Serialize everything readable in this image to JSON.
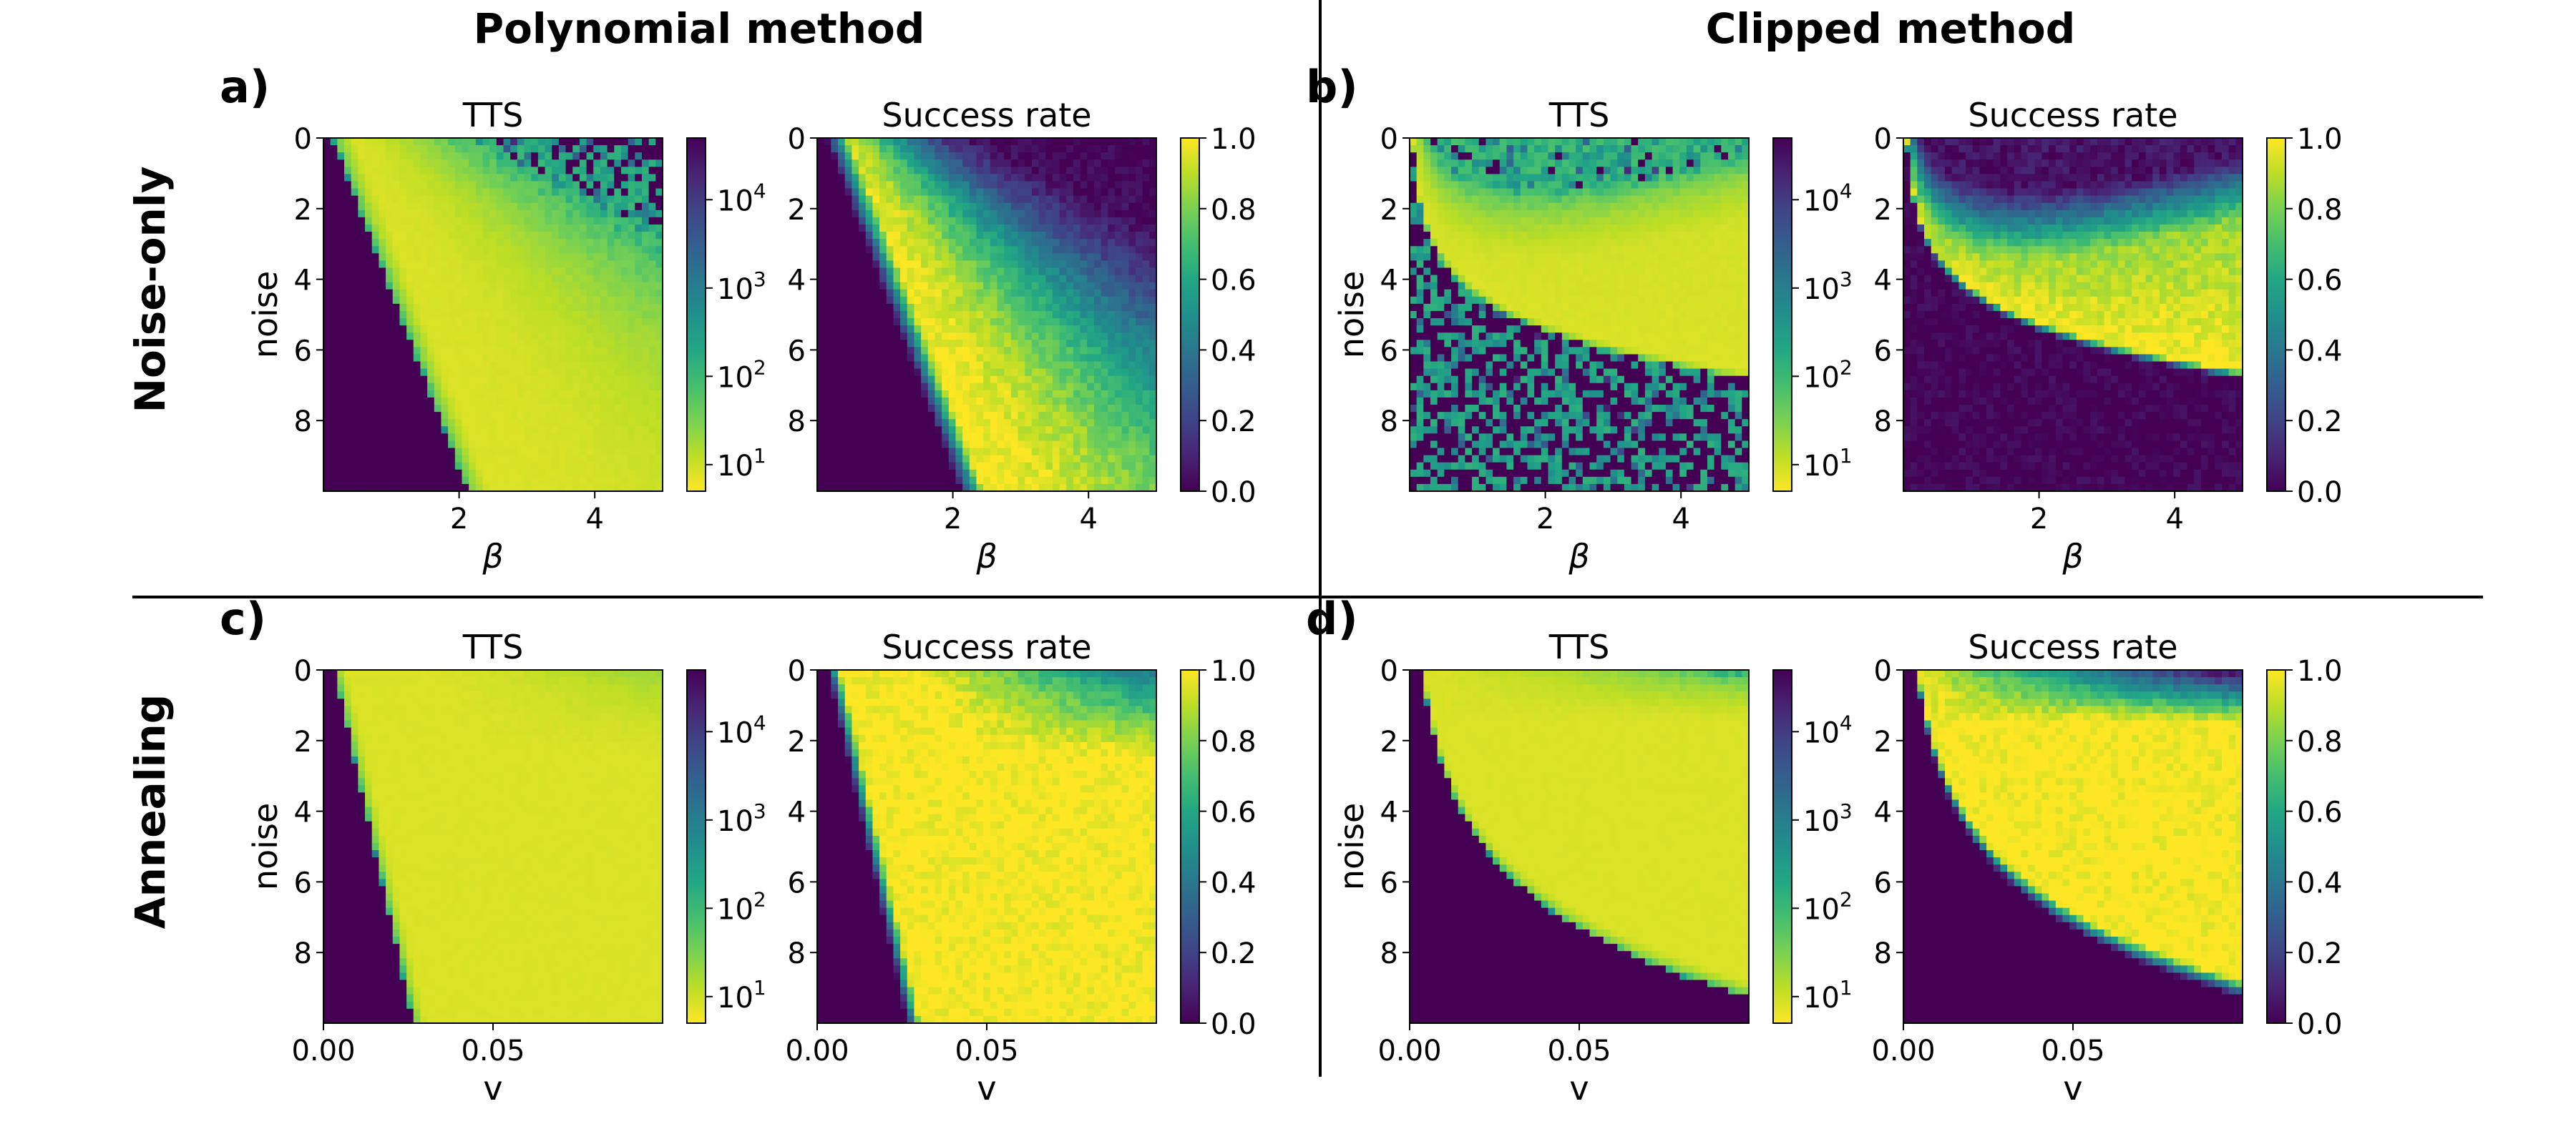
{
  "figure": {
    "col_headers": [
      "Polynomial method",
      "Clipped method"
    ],
    "row_headers": [
      "Noise-only",
      "Annealing"
    ],
    "colors": {
      "axis": "#000000",
      "background": "#ffffff"
    }
  },
  "chart_data": [
    {
      "type": "heatmap",
      "panel_letter": "a)",
      "title": "TTS",
      "method": "polynomial",
      "mode": "noise-only",
      "metric": "tts",
      "xlabel": "β",
      "ylabel": "noise",
      "xlim": [
        0,
        5
      ],
      "ylim": [
        0,
        10
      ],
      "xticks": [
        {
          "v": 2,
          "t": "2"
        },
        {
          "v": 4,
          "t": "4"
        }
      ],
      "yticks": [
        {
          "v": 0,
          "t": "0"
        },
        {
          "v": 2,
          "t": "2"
        },
        {
          "v": 4,
          "t": "4"
        },
        {
          "v": 6,
          "t": "6"
        },
        {
          "v": 8,
          "t": "8"
        }
      ],
      "colorbar": {
        "scale": "log",
        "cmap": "viridis_r",
        "range": [
          5,
          50000
        ],
        "ticks": [
          {
            "v": 10,
            "b": "10",
            "e": "1"
          },
          {
            "v": 100,
            "b": "10",
            "e": "2"
          },
          {
            "v": 1000,
            "b": "10",
            "e": "3"
          },
          {
            "v": 10000,
            "b": "10",
            "e": "4"
          }
        ]
      }
    },
    {
      "type": "heatmap",
      "panel_letter": "",
      "title": "Success rate",
      "method": "polynomial",
      "mode": "noise-only",
      "metric": "success",
      "xlabel": "β",
      "ylabel": "",
      "xlim": [
        0,
        5
      ],
      "ylim": [
        0,
        10
      ],
      "xticks": [
        {
          "v": 2,
          "t": "2"
        },
        {
          "v": 4,
          "t": "4"
        }
      ],
      "yticks": [
        {
          "v": 0,
          "t": "0"
        },
        {
          "v": 2,
          "t": "2"
        },
        {
          "v": 4,
          "t": "4"
        },
        {
          "v": 6,
          "t": "6"
        },
        {
          "v": 8,
          "t": "8"
        }
      ],
      "colorbar": {
        "scale": "linear",
        "cmap": "viridis",
        "range": [
          0,
          1
        ],
        "ticks": [
          {
            "v": 0,
            "t": "0.0"
          },
          {
            "v": 0.2,
            "t": "0.2"
          },
          {
            "v": 0.4,
            "t": "0.4"
          },
          {
            "v": 0.6,
            "t": "0.6"
          },
          {
            "v": 0.8,
            "t": "0.8"
          },
          {
            "v": 1,
            "t": "1.0"
          }
        ]
      }
    },
    {
      "type": "heatmap",
      "panel_letter": "b)",
      "title": "TTS",
      "method": "clipped",
      "mode": "noise-only",
      "metric": "tts",
      "xlabel": "β",
      "ylabel": "noise",
      "xlim": [
        0,
        5
      ],
      "ylim": [
        0,
        10
      ],
      "xticks": [
        {
          "v": 2,
          "t": "2"
        },
        {
          "v": 4,
          "t": "4"
        }
      ],
      "yticks": [
        {
          "v": 0,
          "t": "0"
        },
        {
          "v": 2,
          "t": "2"
        },
        {
          "v": 4,
          "t": "4"
        },
        {
          "v": 6,
          "t": "6"
        },
        {
          "v": 8,
          "t": "8"
        }
      ],
      "colorbar": {
        "scale": "log",
        "cmap": "viridis_r",
        "range": [
          5,
          50000
        ],
        "ticks": [
          {
            "v": 10,
            "b": "10",
            "e": "1"
          },
          {
            "v": 100,
            "b": "10",
            "e": "2"
          },
          {
            "v": 1000,
            "b": "10",
            "e": "3"
          },
          {
            "v": 10000,
            "b": "10",
            "e": "4"
          }
        ]
      }
    },
    {
      "type": "heatmap",
      "panel_letter": "",
      "title": "Success rate",
      "method": "clipped",
      "mode": "noise-only",
      "metric": "success",
      "xlabel": "β",
      "ylabel": "",
      "xlim": [
        0,
        5
      ],
      "ylim": [
        0,
        10
      ],
      "xticks": [
        {
          "v": 2,
          "t": "2"
        },
        {
          "v": 4,
          "t": "4"
        }
      ],
      "yticks": [
        {
          "v": 0,
          "t": "0"
        },
        {
          "v": 2,
          "t": "2"
        },
        {
          "v": 4,
          "t": "4"
        },
        {
          "v": 6,
          "t": "6"
        },
        {
          "v": 8,
          "t": "8"
        }
      ],
      "colorbar": {
        "scale": "linear",
        "cmap": "viridis",
        "range": [
          0,
          1
        ],
        "ticks": [
          {
            "v": 0,
            "t": "0.0"
          },
          {
            "v": 0.2,
            "t": "0.2"
          },
          {
            "v": 0.4,
            "t": "0.4"
          },
          {
            "v": 0.6,
            "t": "0.6"
          },
          {
            "v": 0.8,
            "t": "0.8"
          },
          {
            "v": 1,
            "t": "1.0"
          }
        ]
      }
    },
    {
      "type": "heatmap",
      "panel_letter": "c)",
      "title": "TTS",
      "method": "polynomial",
      "mode": "annealing",
      "metric": "tts",
      "xlabel": "v",
      "ylabel": "noise",
      "xlim": [
        0,
        0.1
      ],
      "ylim": [
        0,
        10
      ],
      "xticks": [
        {
          "v": 0,
          "t": "0.00"
        },
        {
          "v": 0.05,
          "t": "0.05"
        }
      ],
      "yticks": [
        {
          "v": 0,
          "t": "0"
        },
        {
          "v": 2,
          "t": "2"
        },
        {
          "v": 4,
          "t": "4"
        },
        {
          "v": 6,
          "t": "6"
        },
        {
          "v": 8,
          "t": "8"
        }
      ],
      "colorbar": {
        "scale": "log",
        "cmap": "viridis_r",
        "range": [
          5,
          50000
        ],
        "ticks": [
          {
            "v": 10,
            "b": "10",
            "e": "1"
          },
          {
            "v": 100,
            "b": "10",
            "e": "2"
          },
          {
            "v": 1000,
            "b": "10",
            "e": "3"
          },
          {
            "v": 10000,
            "b": "10",
            "e": "4"
          }
        ]
      }
    },
    {
      "type": "heatmap",
      "panel_letter": "",
      "title": "Success rate",
      "method": "polynomial",
      "mode": "annealing",
      "metric": "success",
      "xlabel": "v",
      "ylabel": "",
      "xlim": [
        0,
        0.1
      ],
      "ylim": [
        0,
        10
      ],
      "xticks": [
        {
          "v": 0,
          "t": "0.00"
        },
        {
          "v": 0.05,
          "t": "0.05"
        }
      ],
      "yticks": [
        {
          "v": 0,
          "t": "0"
        },
        {
          "v": 2,
          "t": "2"
        },
        {
          "v": 4,
          "t": "4"
        },
        {
          "v": 6,
          "t": "6"
        },
        {
          "v": 8,
          "t": "8"
        }
      ],
      "colorbar": {
        "scale": "linear",
        "cmap": "viridis",
        "range": [
          0,
          1
        ],
        "ticks": [
          {
            "v": 0,
            "t": "0.0"
          },
          {
            "v": 0.2,
            "t": "0.2"
          },
          {
            "v": 0.4,
            "t": "0.4"
          },
          {
            "v": 0.6,
            "t": "0.6"
          },
          {
            "v": 0.8,
            "t": "0.8"
          },
          {
            "v": 1,
            "t": "1.0"
          }
        ]
      }
    },
    {
      "type": "heatmap",
      "panel_letter": "d)",
      "title": "TTS",
      "method": "clipped",
      "mode": "annealing",
      "metric": "tts",
      "xlabel": "v",
      "ylabel": "noise",
      "xlim": [
        0,
        0.1
      ],
      "ylim": [
        0,
        10
      ],
      "xticks": [
        {
          "v": 0,
          "t": "0.00"
        },
        {
          "v": 0.05,
          "t": "0.05"
        }
      ],
      "yticks": [
        {
          "v": 0,
          "t": "0"
        },
        {
          "v": 2,
          "t": "2"
        },
        {
          "v": 4,
          "t": "4"
        },
        {
          "v": 6,
          "t": "6"
        },
        {
          "v": 8,
          "t": "8"
        }
      ],
      "colorbar": {
        "scale": "log",
        "cmap": "viridis_r",
        "range": [
          5,
          50000
        ],
        "ticks": [
          {
            "v": 10,
            "b": "10",
            "e": "1"
          },
          {
            "v": 100,
            "b": "10",
            "e": "2"
          },
          {
            "v": 1000,
            "b": "10",
            "e": "3"
          },
          {
            "v": 10000,
            "b": "10",
            "e": "4"
          }
        ]
      }
    },
    {
      "type": "heatmap",
      "panel_letter": "",
      "title": "Success rate",
      "method": "clipped",
      "mode": "annealing",
      "metric": "success",
      "xlabel": "v",
      "ylabel": "",
      "xlim": [
        0,
        0.1
      ],
      "ylim": [
        0,
        10
      ],
      "xticks": [
        {
          "v": 0,
          "t": "0.00"
        },
        {
          "v": 0.05,
          "t": "0.05"
        }
      ],
      "yticks": [
        {
          "v": 0,
          "t": "0"
        },
        {
          "v": 2,
          "t": "2"
        },
        {
          "v": 4,
          "t": "4"
        },
        {
          "v": 6,
          "t": "6"
        },
        {
          "v": 8,
          "t": "8"
        }
      ],
      "colorbar": {
        "scale": "linear",
        "cmap": "viridis",
        "range": [
          0,
          1
        ],
        "ticks": [
          {
            "v": 0,
            "t": "0.0"
          },
          {
            "v": 0.2,
            "t": "0.2"
          },
          {
            "v": 0.4,
            "t": "0.4"
          },
          {
            "v": 0.6,
            "t": "0.6"
          },
          {
            "v": 0.8,
            "t": "0.8"
          },
          {
            "v": 1,
            "t": "1.0"
          }
        ]
      }
    }
  ]
}
